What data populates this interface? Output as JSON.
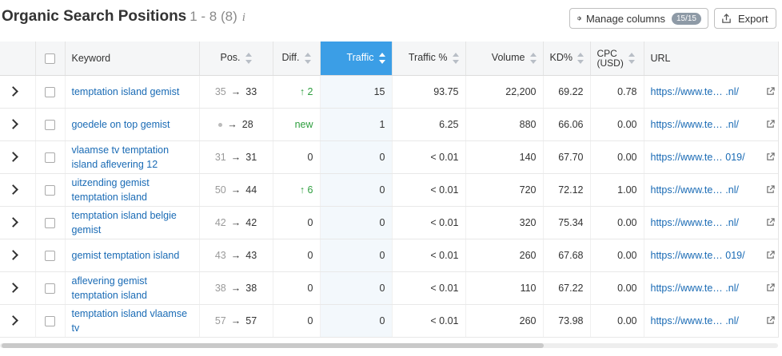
{
  "header": {
    "title": "Organic Search Positions",
    "range": "1 - 8 (8)",
    "info_icon": "i",
    "manage_columns_label": "Manage columns",
    "manage_columns_badge": "15/15",
    "export_label": "Export"
  },
  "columns": {
    "keyword": "Keyword",
    "pos": "Pos.",
    "diff": "Diff.",
    "traffic": "Traffic",
    "traffic_pct": "Traffic %",
    "volume": "Volume",
    "kd": "KD%",
    "cpc_line1": "CPC",
    "cpc_line2": "(USD)",
    "url": "URL"
  },
  "rows": [
    {
      "keyword": "temptation island gemist",
      "prev": "35",
      "pos": "33",
      "diff": "↑ 2",
      "traffic": "15",
      "traffic_pct": "93.75",
      "volume": "22,200",
      "kd": "69.22",
      "cpc": "0.78",
      "url": "https://www.te… .nl/"
    },
    {
      "keyword": "goedele on top gemist",
      "prev": "•",
      "pos": "28",
      "diff": "new",
      "traffic": "1",
      "traffic_pct": "6.25",
      "volume": "880",
      "kd": "66.06",
      "cpc": "0.00",
      "url": "https://www.te… .nl/"
    },
    {
      "keyword": "vlaamse tv temptation island aflevering 12",
      "prev": "31",
      "pos": "31",
      "diff": "0",
      "traffic": "0",
      "traffic_pct": "< 0.01",
      "volume": "140",
      "kd": "67.70",
      "cpc": "0.00",
      "url": "https://www.te… 019/"
    },
    {
      "keyword": "uitzending gemist temptation island",
      "prev": "50",
      "pos": "44",
      "diff": "↑ 6",
      "traffic": "0",
      "traffic_pct": "< 0.01",
      "volume": "720",
      "kd": "72.12",
      "cpc": "1.00",
      "url": "https://www.te… .nl/"
    },
    {
      "keyword": "temptation island belgie gemist",
      "prev": "42",
      "pos": "42",
      "diff": "0",
      "traffic": "0",
      "traffic_pct": "< 0.01",
      "volume": "320",
      "kd": "75.34",
      "cpc": "0.00",
      "url": "https://www.te… .nl/"
    },
    {
      "keyword": "gemist temptation island",
      "prev": "43",
      "pos": "43",
      "diff": "0",
      "traffic": "0",
      "traffic_pct": "< 0.01",
      "volume": "260",
      "kd": "67.68",
      "cpc": "0.00",
      "url": "https://www.te… 019/"
    },
    {
      "keyword": "aflevering gemist temptation island",
      "prev": "38",
      "pos": "38",
      "diff": "0",
      "traffic": "0",
      "traffic_pct": "< 0.01",
      "volume": "110",
      "kd": "67.22",
      "cpc": "0.00",
      "url": "https://www.te… .nl/"
    },
    {
      "keyword": "temptation island vlaamse tv",
      "prev": "57",
      "pos": "57",
      "diff": "0",
      "traffic": "0",
      "traffic_pct": "< 0.01",
      "volume": "260",
      "kd": "73.98",
      "cpc": "0.00",
      "url": "https://www.te… .nl/"
    }
  ],
  "colors": {
    "accent": "#3b9ee6",
    "link": "#1a6bb5",
    "positive": "#2e9e3e"
  },
  "icons": [
    "info-icon",
    "gear-icon",
    "export-icon",
    "sort-icon",
    "chevron-right-icon",
    "checkbox",
    "external-link-icon"
  ]
}
